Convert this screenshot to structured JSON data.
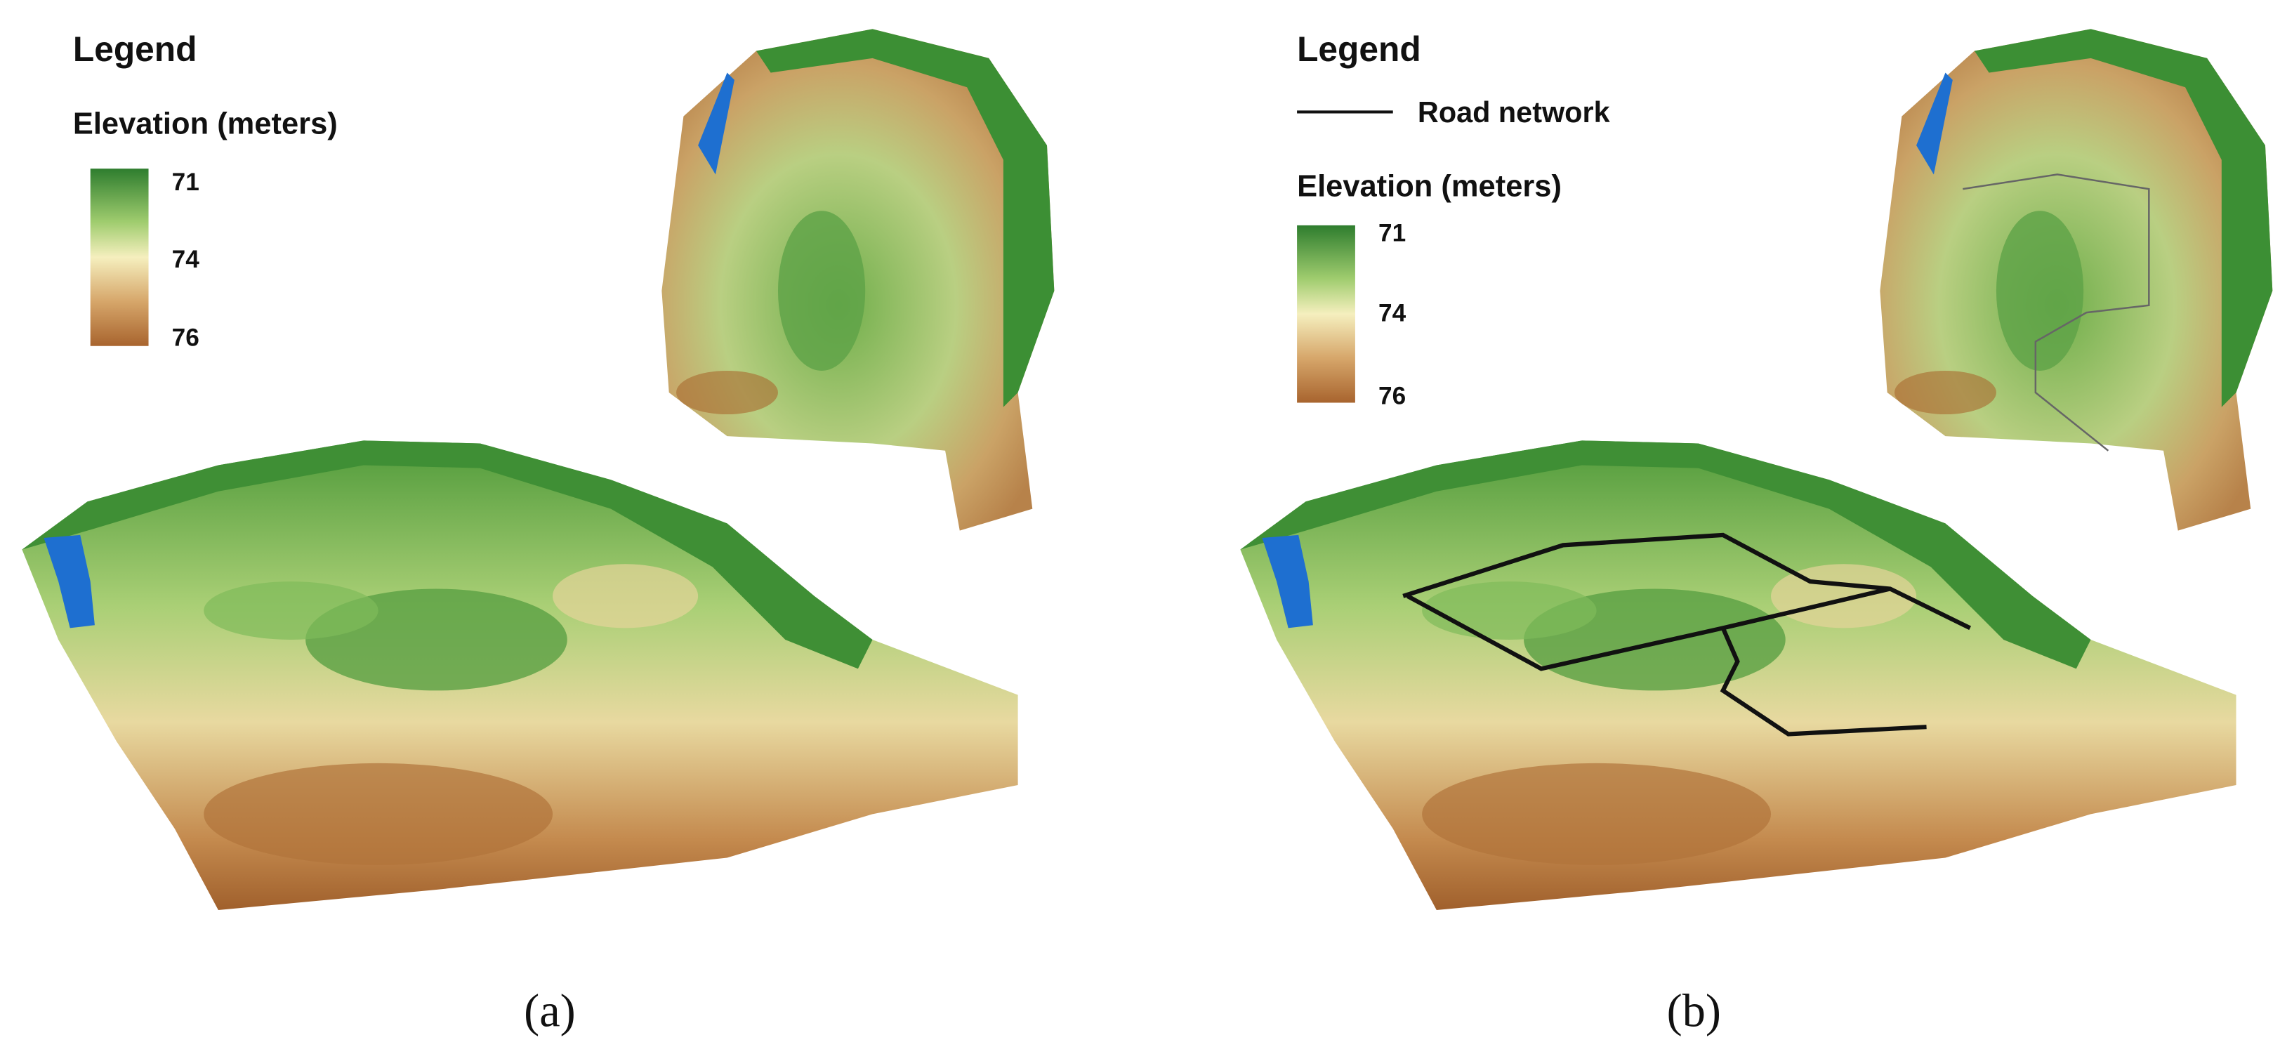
{
  "panels": [
    {
      "legend_title": "Legend",
      "elevation_title": "Elevation  (meters)",
      "legend_labels": [
        "71",
        "74",
        "76"
      ],
      "caption": "(a)"
    },
    {
      "legend_title": "Legend",
      "road_label": "Road network",
      "elevation_title": "Elevation  (meters)",
      "legend_labels": [
        "71",
        "74",
        "76"
      ],
      "caption": "(b)"
    }
  ]
}
